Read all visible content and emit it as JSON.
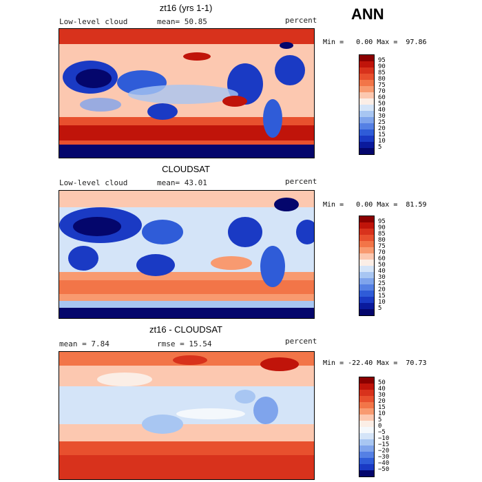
{
  "season": "ANN",
  "panels": [
    {
      "title": "zt16 (yrs 1-1)",
      "variable": "Low-level cloud",
      "stat": "mean=  50.85",
      "units": "percent",
      "minmax": "Min =   0.00 Max =  97.86",
      "scale": "abs",
      "levels": [
        "95",
        "90",
        "85",
        "80",
        "75",
        "70",
        "60",
        "50",
        "40",
        "30",
        "25",
        "20",
        "15",
        "10",
        "5"
      ]
    },
    {
      "title": "CLOUDSAT",
      "variable": "Low-level cloud",
      "stat": "mean=  43.01",
      "units": "percent",
      "minmax": "Min =   0.00 Max =  81.59",
      "scale": "abs",
      "levels": [
        "95",
        "90",
        "85",
        "80",
        "75",
        "70",
        "60",
        "50",
        "40",
        "30",
        "25",
        "20",
        "15",
        "10",
        "5"
      ]
    },
    {
      "title": "zt16 - CLOUDSAT",
      "variable": "mean =   7.84",
      "stat": "rmse =  15.54",
      "units": "percent",
      "minmax": "Min = -22.40 Max =  70.73",
      "scale": "diff",
      "levels": [
        "50",
        "40",
        "30",
        "20",
        "15",
        "10",
        "5",
        "0",
        "−5",
        "−10",
        "−15",
        "−20",
        "−30",
        "−40",
        "−50"
      ]
    }
  ],
  "colors": {
    "abs": [
      "#8b0000",
      "#c0140a",
      "#d8321c",
      "#e8502e",
      "#f27548",
      "#f89a70",
      "#fcc8b0",
      "#fbeee6",
      "#d4e4f8",
      "#a8c6f2",
      "#7fa4ec",
      "#5580e4",
      "#2f5cd8",
      "#1a3ac4",
      "#0a1a9c",
      "#04066c"
    ],
    "diff": [
      "#8b0000",
      "#c0140a",
      "#d8321c",
      "#e8502e",
      "#f27548",
      "#f89a70",
      "#fcc8b0",
      "#fbeee6",
      "#f4f8fc",
      "#d4e4f8",
      "#a8c6f2",
      "#7fa4ec",
      "#5580e4",
      "#2f5cd8",
      "#1a3ac4",
      "#04066c"
    ]
  }
}
